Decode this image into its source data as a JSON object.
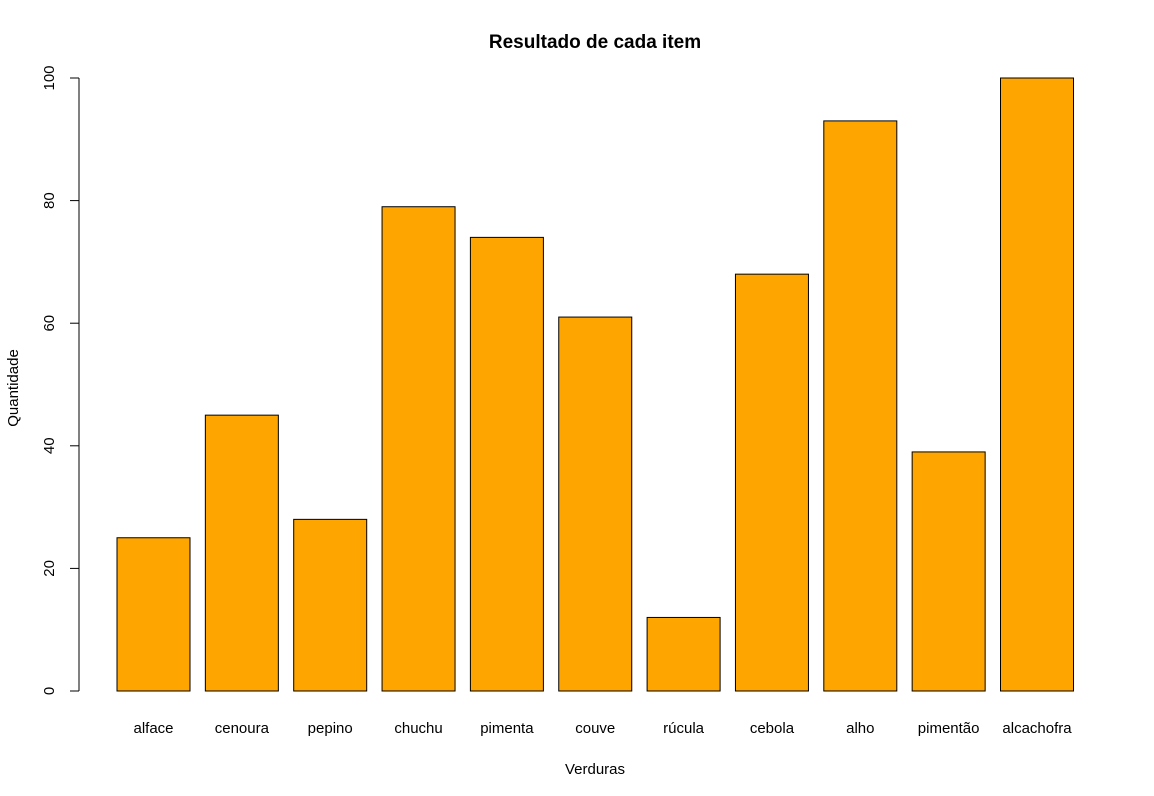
{
  "chart_data": {
    "type": "bar",
    "title": "Resultado de cada item",
    "xlabel": "Verduras",
    "ylabel": "Quantidade",
    "categories": [
      "alface",
      "cenoura",
      "pepino",
      "chuchu",
      "pimenta",
      "couve",
      "rúcula",
      "cebola",
      "alho",
      "pimentão",
      "alcachofra"
    ],
    "values": [
      25,
      45,
      28,
      79,
      74,
      61,
      12,
      68,
      93,
      39,
      100
    ],
    "ylim": [
      0,
      100
    ],
    "yticks": [
      0,
      20,
      40,
      60,
      80,
      100
    ],
    "grid": false,
    "bar_color": "#FFA500",
    "bar_border_color": "#000000"
  }
}
